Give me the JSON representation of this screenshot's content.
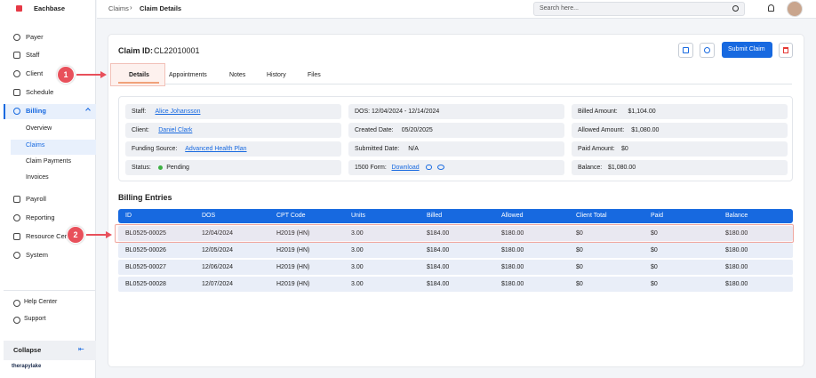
{
  "sidebar": {
    "brand": "Eachbase",
    "nav": [
      "Payer",
      "Staff",
      "Client",
      "Schedule",
      "Billing",
      "Payroll",
      "Reporting",
      "Resource Center",
      "System"
    ],
    "billing_sub": [
      "Overview",
      "Claims",
      "Claim Payments",
      "Invoices"
    ],
    "bottom": [
      "Help Center",
      "Support"
    ],
    "collapse": "Collapse",
    "footer": "therapylake"
  },
  "topbar": {
    "breadcrumb": [
      "Claims",
      "Claim Details"
    ],
    "search_placeholder": "Search here..."
  },
  "claim": {
    "id_label": "Claim ID:",
    "id": "CL22010001",
    "submit": "Submit Claim",
    "tabs": [
      "Details",
      "Appointments",
      "Notes",
      "History",
      "Files"
    ],
    "fields": [
      [
        {
          "label": "Staff:",
          "value": "Alice Johansson"
        },
        {
          "label": "Client:",
          "value": "Daniel Clark"
        },
        {
          "label": "Funding Source:",
          "value": "Advanced Health Plan"
        },
        {
          "label": "Status:",
          "value": "Pending"
        }
      ],
      [
        {
          "label": "DOS:",
          "value": "12/04/2024 - 12/14/2024"
        },
        {
          "label": "Created Date:",
          "value": "05/20/2025"
        },
        {
          "label": "Submitted Date:",
          "value": "N/A"
        },
        {
          "label": "1500 Form:",
          "value": "Download"
        }
      ],
      [
        {
          "label": "Billed Amount:",
          "value": "$1,104.00"
        },
        {
          "label": "Allowed Amount:",
          "value": "$1,080.00"
        },
        {
          "label": "Paid Amount:",
          "value": "$0"
        },
        {
          "label": "Balance:",
          "value": "$1,080.00"
        }
      ]
    ]
  },
  "billing": {
    "title": "Billing Entries",
    "columns": [
      "ID",
      "DOS",
      "CPT Code",
      "Units",
      "Billed",
      "Allowed",
      "Client Total",
      "Paid",
      "Balance"
    ],
    "rows": [
      [
        "BL0525-00025",
        "12/04/2024",
        "H2019 (HN)",
        "3.00",
        "$184.00",
        "$180.00",
        "$0",
        "$0",
        "$180.00"
      ],
      [
        "BL0525-00026",
        "12/05/2024",
        "H2019 (HN)",
        "3.00",
        "$184.00",
        "$180.00",
        "$0",
        "$0",
        "$180.00"
      ],
      [
        "BL0525-00027",
        "12/06/2024",
        "H2019 (HN)",
        "3.00",
        "$184.00",
        "$180.00",
        "$0",
        "$0",
        "$180.00"
      ],
      [
        "BL0525-00028",
        "12/07/2024",
        "H2019 (HN)",
        "3.00",
        "$184.00",
        "$180.00",
        "$0",
        "$0",
        "$180.00"
      ]
    ]
  },
  "annotations": [
    "1",
    "2"
  ]
}
